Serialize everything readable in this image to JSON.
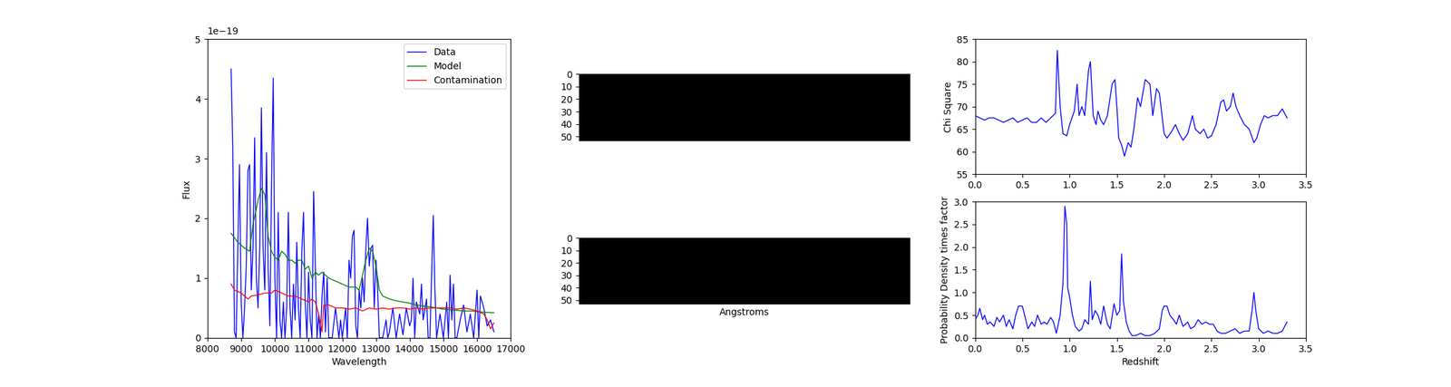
{
  "chart_data": [
    {
      "type": "line",
      "xlabel": "Wavelength",
      "ylabel": "Flux",
      "annotations": [
        "1e−19"
      ],
      "xlim": [
        8000,
        17000
      ],
      "xticks": [
        8000,
        9000,
        10000,
        11000,
        12000,
        13000,
        14000,
        15000,
        16000,
        17000
      ],
      "ylim": [
        0,
        5
      ],
      "yticks": [
        0,
        1,
        2,
        3,
        4,
        5
      ],
      "legend": "upper right",
      "series": [
        {
          "name": "Data",
          "color": "#0000ff",
          "x": [
            8700,
            8750,
            8800,
            8850,
            8900,
            8950,
            9000,
            9050,
            9100,
            9150,
            9200,
            9250,
            9300,
            9350,
            9400,
            9450,
            9500,
            9550,
            9600,
            9650,
            9700,
            9750,
            9800,
            9850,
            9900,
            9950,
            10000,
            10050,
            10100,
            10150,
            10200,
            10250,
            10300,
            10350,
            10400,
            10450,
            10500,
            10550,
            10600,
            10650,
            10700,
            10750,
            10800,
            10850,
            10900,
            10950,
            11000,
            11050,
            11100,
            11150,
            11200,
            11250,
            11300,
            11350,
            11400,
            11450,
            11500,
            11550,
            11600,
            11700,
            11800,
            11900,
            11950,
            12000,
            12100,
            12150,
            12200,
            12250,
            12300,
            12350,
            12400,
            12450,
            12500,
            12550,
            12600,
            12650,
            12700,
            12750,
            12800,
            12850,
            12900,
            12950,
            13000,
            13050,
            13100,
            13200,
            13300,
            13350,
            13400,
            13500,
            13600,
            13700,
            13800,
            13900,
            14000,
            14050,
            14100,
            14150,
            14200,
            14300,
            14350,
            14400,
            14500,
            14550,
            14600,
            14700,
            14750,
            14800,
            14900,
            15000,
            15100,
            15150,
            15200,
            15250,
            15300,
            15350,
            15400,
            15500,
            15600,
            15700,
            15800,
            15900,
            16000,
            16050,
            16100,
            16200,
            16300,
            16400,
            16500
          ],
          "values": [
            4.5,
            3.2,
            0.1,
            0,
            1.5,
            2.9,
            0.6,
            0,
            0.5,
            1.2,
            2.8,
            2.9,
            0.8,
            1.5,
            3.35,
            1.0,
            0.5,
            1.5,
            3.85,
            1.5,
            0.8,
            3.1,
            1.2,
            0.2,
            2.5,
            4.35,
            1.0,
            0,
            2.1,
            0.3,
            0,
            0.6,
            0,
            0.5,
            2.1,
            0.5,
            0,
            0.9,
            0.3,
            1.6,
            0.5,
            0,
            1.45,
            2.1,
            0.6,
            0,
            1.1,
            0.3,
            0,
            2.45,
            1.2,
            0,
            0.4,
            0,
            0.7,
            1.1,
            0.1,
            1.0,
            0,
            0,
            0.5,
            0,
            0.3,
            0,
            0.5,
            0,
            1.3,
            1.0,
            1.7,
            1.8,
            0.2,
            0,
            0.8,
            0.5,
            1.0,
            0.6,
            1.5,
            2.0,
            1.2,
            1.5,
            1.55,
            0.5,
            1.3,
            0.8,
            0,
            0,
            0.3,
            0,
            0.1,
            0.5,
            0,
            0.4,
            0.05,
            0.5,
            0.2,
            0.3,
            1.0,
            0,
            0.6,
            0.4,
            0.9,
            0.3,
            0.65,
            0,
            0,
            2.05,
            0.8,
            0,
            0.4,
            0,
            0.6,
            0,
            1.05,
            0.3,
            0.9,
            0,
            0,
            0.3,
            0.55,
            0.1,
            0.4,
            0,
            0.8,
            0,
            0.7,
            0.5,
            0.2,
            0.3,
            0.1
          ]
        },
        {
          "name": "Model",
          "color": "#008000",
          "x": [
            8700,
            8900,
            9100,
            9250,
            9350,
            9500,
            9600,
            9700,
            9800,
            9900,
            10000,
            10100,
            10200,
            10300,
            10400,
            10500,
            10600,
            10700,
            10800,
            10900,
            11000,
            11100,
            11200,
            11300,
            11400,
            11500,
            11600,
            11800,
            12000,
            12200,
            12400,
            12500,
            12600,
            12700,
            12800,
            12900,
            13000,
            13100,
            13200,
            13400,
            13600,
            13800,
            14000,
            14200,
            14400,
            14600,
            14800,
            15000,
            15200,
            15400,
            15600,
            15800,
            16000,
            16200,
            16500
          ],
          "values": [
            1.75,
            1.6,
            1.5,
            1.45,
            1.9,
            2.3,
            2.5,
            2.4,
            1.7,
            1.45,
            1.35,
            1.3,
            1.45,
            1.4,
            1.3,
            1.3,
            1.25,
            1.3,
            1.3,
            1.15,
            1.2,
            1.0,
            1.1,
            1.05,
            1.1,
            1.05,
            1.0,
            0.95,
            0.9,
            0.85,
            0.85,
            0.8,
            1.05,
            1.3,
            1.5,
            1.45,
            1.2,
            0.8,
            0.7,
            0.65,
            0.62,
            0.6,
            0.58,
            0.55,
            0.53,
            0.52,
            0.5,
            0.48,
            0.47,
            0.46,
            0.45,
            0.45,
            0.44,
            0.43,
            0.42
          ]
        },
        {
          "name": "Contamination",
          "color": "#ff0000",
          "x": [
            8700,
            8800,
            9000,
            9200,
            9300,
            9500,
            9700,
            9900,
            10000,
            10200,
            10400,
            10600,
            10800,
            11000,
            11100,
            11200,
            11300,
            11400,
            11450,
            11600,
            11800,
            12000,
            12200,
            12400,
            12600,
            12800,
            13000,
            13200,
            13400,
            13600,
            13800,
            14000,
            14200,
            14400,
            14600,
            14800,
            15000,
            15200,
            15400,
            15600,
            15800,
            16000,
            16200,
            16300,
            16400,
            16500
          ],
          "values": [
            0.9,
            0.8,
            0.75,
            0.65,
            0.7,
            0.72,
            0.75,
            0.75,
            0.8,
            0.75,
            0.7,
            0.7,
            0.65,
            0.6,
            0.65,
            0.6,
            0.4,
            0.1,
            0.55,
            0.55,
            0.5,
            0.5,
            0.48,
            0.5,
            0.45,
            0.5,
            0.48,
            0.5,
            0.48,
            0.5,
            0.5,
            0.48,
            0.5,
            0.48,
            0.5,
            0.5,
            0.5,
            0.5,
            0.48,
            0.5,
            0.48,
            0.45,
            0.4,
            0.3,
            0.15,
            0.25
          ]
        }
      ]
    },
    {
      "type": "image",
      "color": "#000000",
      "ylim": [
        53,
        0
      ],
      "yticks": [
        0,
        10,
        20,
        30,
        40,
        50
      ],
      "tick_labels": "y"
    },
    {
      "type": "image",
      "color": "#000000",
      "ylim": [
        53,
        0
      ],
      "yticks": [
        0,
        10,
        20,
        30,
        40,
        50
      ],
      "tick_labels": "y",
      "xlabel": "Angstroms"
    },
    {
      "type": "line",
      "ylabel": "Chi Square",
      "xlim": [
        0.0,
        3.5
      ],
      "xticks": [
        0.0,
        0.5,
        1.0,
        1.5,
        2.0,
        2.5,
        3.0,
        3.5
      ],
      "ylim": [
        55,
        85
      ],
      "yticks": [
        55,
        60,
        65,
        70,
        75,
        80,
        85
      ],
      "series": [
        {
          "color": "#0000ff",
          "x": [
            0.0,
            0.05,
            0.1,
            0.15,
            0.2,
            0.25,
            0.3,
            0.35,
            0.4,
            0.45,
            0.5,
            0.55,
            0.6,
            0.65,
            0.7,
            0.75,
            0.8,
            0.85,
            0.87,
            0.9,
            0.93,
            0.97,
            1.0,
            1.05,
            1.08,
            1.1,
            1.13,
            1.16,
            1.2,
            1.22,
            1.25,
            1.28,
            1.3,
            1.33,
            1.36,
            1.4,
            1.45,
            1.48,
            1.5,
            1.52,
            1.55,
            1.58,
            1.62,
            1.65,
            1.68,
            1.72,
            1.75,
            1.8,
            1.85,
            1.88,
            1.92,
            1.95,
            2.0,
            2.03,
            2.08,
            2.12,
            2.16,
            2.2,
            2.25,
            2.3,
            2.33,
            2.38,
            2.42,
            2.46,
            2.5,
            2.55,
            2.6,
            2.63,
            2.66,
            2.7,
            2.73,
            2.76,
            2.8,
            2.85,
            2.9,
            2.95,
            2.98,
            3.02,
            3.06,
            3.1,
            3.15,
            3.2,
            3.25,
            3.3
          ],
          "values": [
            68,
            67.5,
            67,
            67.5,
            67.5,
            67,
            66.5,
            67,
            67.5,
            66.5,
            67,
            67.5,
            66.5,
            66.5,
            67.5,
            66.5,
            67.5,
            68.5,
            82.5,
            70,
            64,
            63.5,
            66,
            69,
            75,
            68,
            70,
            68,
            78,
            80,
            68,
            66,
            69,
            67,
            66,
            68,
            75,
            76,
            70,
            63,
            61.5,
            59,
            62,
            61,
            65,
            72,
            70,
            76,
            75,
            68,
            74,
            73,
            64,
            63,
            64.5,
            66,
            64,
            62.5,
            64,
            68,
            65,
            64,
            65,
            63,
            63.5,
            66,
            71,
            71.5,
            69,
            70,
            73,
            70,
            68,
            66,
            65,
            62,
            63,
            66,
            68,
            67.5,
            68,
            68,
            69.5,
            67.5
          ]
        }
      ]
    },
    {
      "type": "line",
      "xlabel": "Redshift",
      "ylabel": "Probability Density times factor",
      "xlim": [
        0.0,
        3.5
      ],
      "xticks": [
        0.0,
        0.5,
        1.0,
        1.5,
        2.0,
        2.5,
        3.0,
        3.5
      ],
      "ylim": [
        0.0,
        3.0
      ],
      "yticks": [
        0.0,
        0.5,
        1.0,
        1.5,
        2.0,
        2.5,
        3.0
      ],
      "series": [
        {
          "color": "#0000ff",
          "x": [
            0.0,
            0.03,
            0.05,
            0.08,
            0.1,
            0.13,
            0.16,
            0.2,
            0.23,
            0.26,
            0.3,
            0.33,
            0.36,
            0.4,
            0.43,
            0.46,
            0.5,
            0.53,
            0.56,
            0.6,
            0.63,
            0.66,
            0.7,
            0.73,
            0.76,
            0.8,
            0.83,
            0.86,
            0.9,
            0.93,
            0.95,
            0.97,
            0.98,
            1.0,
            1.03,
            1.06,
            1.1,
            1.13,
            1.16,
            1.2,
            1.22,
            1.24,
            1.27,
            1.3,
            1.33,
            1.36,
            1.4,
            1.43,
            1.47,
            1.5,
            1.53,
            1.55,
            1.57,
            1.6,
            1.63,
            1.66,
            1.7,
            1.75,
            1.8,
            1.85,
            1.9,
            1.95,
            1.98,
            2.0,
            2.03,
            2.06,
            2.1,
            2.13,
            2.16,
            2.2,
            2.25,
            2.28,
            2.32,
            2.36,
            2.4,
            2.44,
            2.48,
            2.52,
            2.56,
            2.6,
            2.65,
            2.7,
            2.75,
            2.8,
            2.85,
            2.9,
            2.93,
            2.95,
            2.97,
            3.0,
            3.05,
            3.1,
            3.15,
            3.2,
            3.25,
            3.3
          ],
          "values": [
            0.4,
            0.5,
            0.65,
            0.4,
            0.5,
            0.3,
            0.35,
            0.25,
            0.45,
            0.35,
            0.5,
            0.25,
            0.4,
            0.2,
            0.5,
            0.7,
            0.7,
            0.45,
            0.2,
            0.35,
            0.25,
            0.5,
            0.3,
            0.35,
            0.3,
            0.45,
            0.35,
            0.1,
            0.5,
            1.2,
            2.9,
            2.5,
            1.1,
            0.9,
            0.5,
            0.25,
            0.15,
            0.2,
            0.4,
            0.3,
            1.25,
            0.4,
            0.6,
            0.5,
            0.3,
            0.7,
            0.3,
            0.2,
            0.75,
            0.5,
            0.6,
            1.85,
            0.8,
            0.35,
            0.15,
            0.05,
            0.05,
            0.1,
            0.05,
            0.05,
            0.1,
            0.2,
            0.6,
            0.7,
            0.7,
            0.5,
            0.4,
            0.3,
            0.5,
            0.25,
            0.35,
            0.2,
            0.25,
            0.4,
            0.3,
            0.35,
            0.3,
            0.3,
            0.15,
            0.1,
            0.1,
            0.15,
            0.2,
            0.1,
            0.15,
            0.15,
            0.6,
            1.0,
            0.6,
            0.2,
            0.1,
            0.15,
            0.1,
            0.1,
            0.15,
            0.35
          ]
        }
      ]
    }
  ]
}
